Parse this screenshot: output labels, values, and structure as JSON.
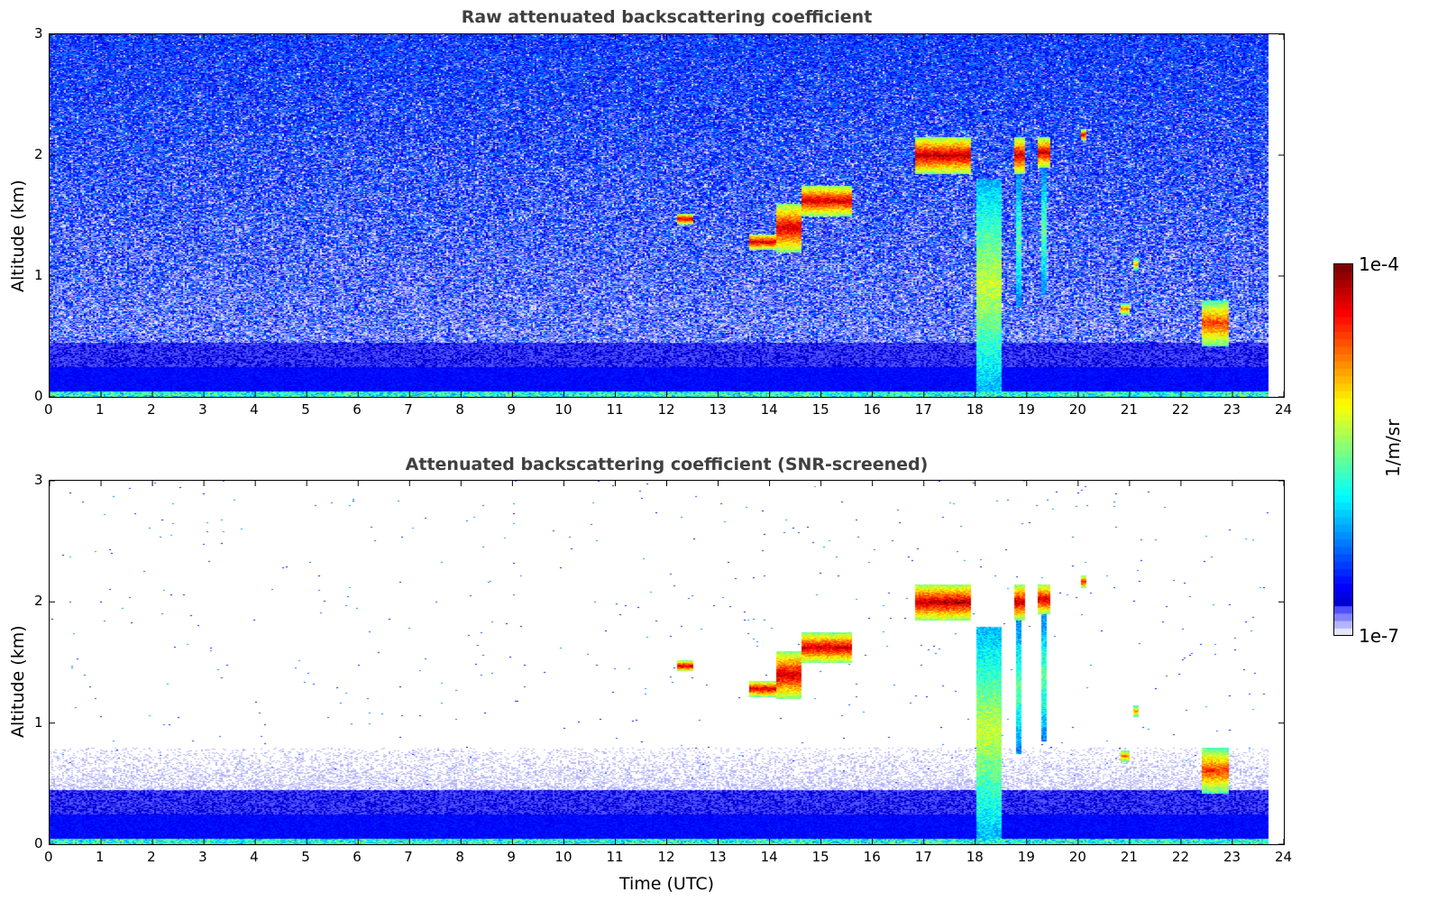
{
  "chart_data": [
    {
      "type": "heatmap",
      "title": "Raw attenuated backscattering coefficient",
      "xlabel": "",
      "ylabel": "Altitude (km)",
      "xlim": [
        0,
        24
      ],
      "ylim": [
        0,
        3
      ],
      "x_ticks": [
        0,
        1,
        2,
        3,
        4,
        5,
        6,
        7,
        8,
        9,
        10,
        11,
        12,
        13,
        14,
        15,
        16,
        17,
        18,
        19,
        20,
        21,
        22,
        23,
        24
      ],
      "y_ticks": [
        0,
        1,
        2,
        3
      ],
      "data_end_time": 23.67,
      "screened": false
    },
    {
      "type": "heatmap",
      "title": "Attenuated backscattering coefficient (SNR-screened)",
      "xlabel": "Time (UTC)",
      "ylabel": "Altitude (km)",
      "xlim": [
        0,
        24
      ],
      "ylim": [
        0,
        3
      ],
      "x_ticks": [
        0,
        1,
        2,
        3,
        4,
        5,
        6,
        7,
        8,
        9,
        10,
        11,
        12,
        13,
        14,
        15,
        16,
        17,
        18,
        19,
        20,
        21,
        22,
        23,
        24
      ],
      "y_ticks": [
        0,
        1,
        2,
        3
      ],
      "data_end_time": 23.67,
      "screened": true
    }
  ],
  "colorbar": {
    "label": "1/m/sr",
    "min_label": "1e-7",
    "max_label": "1e-4",
    "min": 1e-07,
    "max": 0.0001,
    "scale": "log",
    "colormap": "jet (lavender low end)"
  },
  "cloud_features": [
    {
      "t0": 12.2,
      "t1": 12.5,
      "z_bot": 1.43,
      "z_top": 1.52,
      "level": 0.95
    },
    {
      "t0": 13.6,
      "t1": 14.1,
      "z_bot": 1.22,
      "z_top": 1.35,
      "level": 0.95
    },
    {
      "t0": 14.1,
      "t1": 14.6,
      "z_bot": 1.2,
      "z_top": 1.6,
      "level": 0.95
    },
    {
      "t0": 14.6,
      "t1": 15.6,
      "z_bot": 1.5,
      "z_top": 1.75,
      "level": 0.95
    },
    {
      "t0": 16.8,
      "t1": 17.9,
      "z_bot": 1.85,
      "z_top": 2.15,
      "level": 0.97
    },
    {
      "t0": 18.0,
      "t1": 18.5,
      "z_bot": 0.05,
      "z_top": 1.8,
      "level": 0.6
    },
    {
      "t0": 18.75,
      "t1": 18.95,
      "z_bot": 1.85,
      "z_top": 2.15,
      "level": 0.95
    },
    {
      "t0": 18.78,
      "t1": 18.88,
      "z_bot": 0.75,
      "z_top": 1.85,
      "level": 0.5
    },
    {
      "t0": 19.2,
      "t1": 19.45,
      "z_bot": 1.9,
      "z_top": 2.15,
      "level": 0.95
    },
    {
      "t0": 19.28,
      "t1": 19.38,
      "z_bot": 0.85,
      "z_top": 1.9,
      "level": 0.5
    },
    {
      "t0": 20.05,
      "t1": 20.15,
      "z_bot": 2.12,
      "z_top": 2.22,
      "level": 0.9
    },
    {
      "t0": 20.8,
      "t1": 21.0,
      "z_bot": 0.68,
      "z_top": 0.78,
      "level": 0.8
    },
    {
      "t0": 21.05,
      "t1": 21.15,
      "z_bot": 1.05,
      "z_top": 1.15,
      "level": 0.75
    },
    {
      "t0": 22.4,
      "t1": 22.9,
      "z_bot": 0.42,
      "z_top": 0.8,
      "level": 0.85
    }
  ]
}
